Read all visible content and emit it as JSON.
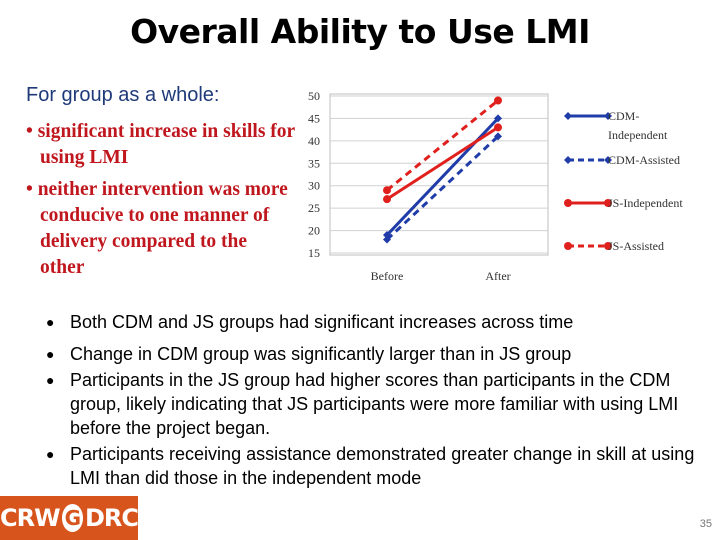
{
  "title": "Overall Ability to Use LMI",
  "left": {
    "subhead": "For group as a whole:",
    "bullets": [
      "• significant increase in skills for using LMI",
      "• neither intervention was more conducive to one manner of delivery compared to the other"
    ]
  },
  "chart_data": {
    "type": "line",
    "categories": [
      "Before",
      "After"
    ],
    "ylim": [
      15,
      50
    ],
    "yticks": [
      15,
      20,
      25,
      30,
      35,
      40,
      45,
      50
    ],
    "grid": true,
    "legend_position": "right",
    "series": [
      {
        "name": "CDM-Independent",
        "values": [
          19,
          45
        ],
        "color": "#1f3ca8",
        "dash": false,
        "marker": "diamond"
      },
      {
        "name": "CDM-Assisted",
        "values": [
          18,
          41
        ],
        "color": "#1f3ca8",
        "dash": true,
        "marker": "diamond"
      },
      {
        "name": "JS-Independent",
        "values": [
          27,
          43
        ],
        "color": "#e0201c",
        "dash": false,
        "marker": "circle"
      },
      {
        "name": "JS-Assisted",
        "values": [
          29,
          49
        ],
        "color": "#e0201c",
        "dash": true,
        "marker": "circle"
      }
    ]
  },
  "bullets": [
    "Both CDM and JS groups had significant increases across time",
    "Change in CDM group was significantly larger than in JS group",
    "Participants in the JS group had higher scores than participants in the CDM group, likely indicating that JS participants were more familiar with using LMI before the project began.",
    "Participants receiving assistance demonstrated greater change in skill at using LMI than did those in the independent mode"
  ],
  "logo": {
    "left": "CRW",
    "middle": "G",
    "right": "DRC"
  },
  "page_number": "35"
}
